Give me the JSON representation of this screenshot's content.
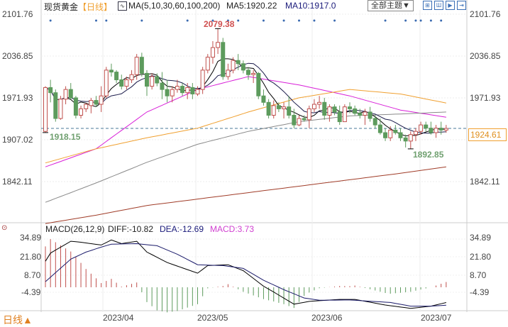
{
  "header": {
    "instrument": "现货黄金",
    "period_tag": "【日线】",
    "ma_label": "MA(5,10,30,60,100,200)",
    "ma5": "MA5:1920.22",
    "ma10": "MA10:1917.0",
    "theme_button": "全部主题▼",
    "icons": [
      "grid-icon",
      "bars-icon",
      "chart-up-icon",
      "export-icon"
    ]
  },
  "macd_header": {
    "label": "MACD(26,12,9)",
    "diff": "DIFF:-10.82",
    "dea": "DEA:-12.69",
    "macd": "MACD:3.73"
  },
  "footer": {
    "period": "日线▲"
  },
  "colors": {
    "up": "#c0504d",
    "down": "#5d9b5d",
    "ma5": "#000000",
    "ma10": "#1a1a4a",
    "ma30": "#d81fd8",
    "ma60": "#f0a030",
    "ma100": "#8a8a8a",
    "ma200": "#a03c28",
    "diff": "#000000",
    "dea": "#1a1a6a",
    "high_label": "#d05050",
    "low_label": "#70a070",
    "price_box": "#f0a030"
  },
  "chart_data": [
    {
      "type": "candlestick",
      "title": "",
      "y_ticks": [
        "2101.76",
        "2036.85",
        "1971.93",
        "1907.02",
        "1842.11"
      ],
      "ylim": [
        1842.11,
        2101.76
      ],
      "x_ticks": [
        "2023/04",
        "2023/05",
        "2023/06",
        "2023/07"
      ],
      "current_price": "1924.61",
      "annotations": {
        "high": "2079.38",
        "low_first": "1918.15",
        "low_recent": "1892.85"
      },
      "ohlc": [
        [
          1920,
          1990,
          1918.15,
          1988
        ],
        [
          1988,
          2000,
          1965,
          1980
        ],
        [
          1980,
          1985,
          1935,
          1940
        ],
        [
          1940,
          1975,
          1938,
          1970
        ],
        [
          1970,
          1990,
          1962,
          1985
        ],
        [
          1985,
          1995,
          1970,
          1972
        ],
        [
          1972,
          1975,
          1940,
          1945
        ],
        [
          1945,
          1960,
          1940,
          1955
        ],
        [
          1955,
          1964,
          1950,
          1962
        ],
        [
          1960,
          1972,
          1948,
          1968
        ],
        [
          1968,
          1975,
          1958,
          1962
        ],
        [
          1962,
          1990,
          1950,
          1975
        ],
        [
          1975,
          2020,
          1972,
          2015
        ],
        [
          2015,
          2025,
          2005,
          2012
        ],
        [
          2012,
          2015,
          1995,
          2000
        ],
        [
          2000,
          2008,
          1985,
          1990
        ],
        [
          1990,
          2005,
          1985,
          2000
        ],
        [
          2000,
          2015,
          1995,
          2008
        ],
        [
          2008,
          2040,
          2000,
          2035
        ],
        [
          2035,
          2042,
          2005,
          2010
        ],
        [
          2010,
          2015,
          1975,
          1990
        ],
        [
          1990,
          2010,
          1985,
          2005
        ],
        [
          2005,
          2010,
          1990,
          1995
        ],
        [
          1995,
          2012,
          1970,
          1985
        ],
        [
          1985,
          2000,
          1965,
          1975
        ],
        [
          1975,
          1990,
          1965,
          1985
        ],
        [
          1985,
          2000,
          1980,
          1990
        ],
        [
          1990,
          1995,
          1975,
          1980
        ],
        [
          1980,
          1995,
          1970,
          1988
        ],
        [
          1988,
          1995,
          1970,
          1978
        ],
        [
          1978,
          1990,
          1975,
          1985
        ],
        [
          1985,
          2020,
          1978,
          2015
        ],
        [
          2015,
          2040,
          2010,
          2035
        ],
        [
          2035,
          2060,
          2025,
          2050
        ],
        [
          2050,
          2079.38,
          2040,
          2058
        ],
        [
          2058,
          2065,
          2000,
          2005
        ],
        [
          2005,
          2025,
          2000,
          2015
        ],
        [
          2015,
          2035,
          2010,
          2030
        ],
        [
          2030,
          2040,
          2015,
          2025
        ],
        [
          2025,
          2030,
          2010,
          2015
        ],
        [
          2015,
          2020,
          2000,
          2008
        ],
        [
          2008,
          2015,
          1995,
          2010
        ],
        [
          2010,
          2012,
          1970,
          1975
        ],
        [
          1975,
          1985,
          1960,
          1965
        ],
        [
          1965,
          1970,
          1940,
          1945
        ],
        [
          1945,
          1968,
          1940,
          1960
        ],
        [
          1960,
          1965,
          1950,
          1955
        ],
        [
          1955,
          1965,
          1940,
          1958
        ],
        [
          1958,
          1975,
          1940,
          1945
        ],
        [
          1945,
          1955,
          1925,
          1930
        ],
        [
          1930,
          1945,
          1928,
          1940
        ],
        [
          1940,
          1945,
          1935,
          1938
        ],
        [
          1938,
          1960,
          1925,
          1955
        ],
        [
          1955,
          1970,
          1950,
          1962
        ],
        [
          1962,
          1975,
          1955,
          1965
        ],
        [
          1965,
          1972,
          1938,
          1945
        ],
        [
          1945,
          1962,
          1935,
          1958
        ],
        [
          1958,
          1962,
          1945,
          1950
        ],
        [
          1950,
          1960,
          1930,
          1935
        ],
        [
          1935,
          1962,
          1935,
          1958
        ],
        [
          1958,
          1965,
          1948,
          1955
        ],
        [
          1955,
          1960,
          1945,
          1948
        ],
        [
          1948,
          1955,
          1940,
          1945
        ],
        [
          1945,
          1955,
          1930,
          1950
        ],
        [
          1950,
          1958,
          1935,
          1940
        ],
        [
          1940,
          1945,
          1925,
          1930
        ],
        [
          1930,
          1940,
          1915,
          1918
        ],
        [
          1918,
          1925,
          1905,
          1910
        ],
        [
          1910,
          1928,
          1905,
          1922
        ],
        [
          1922,
          1930,
          1915,
          1918
        ],
        [
          1918,
          1925,
          1905,
          1910
        ],
        [
          1910,
          1915,
          1895,
          1905
        ],
        [
          1905,
          1920,
          1892.85,
          1915
        ],
        [
          1915,
          1925,
          1905,
          1920
        ],
        [
          1920,
          1935,
          1915,
          1930
        ],
        [
          1930,
          1935,
          1920,
          1925
        ],
        [
          1925,
          1935,
          1915,
          1918
        ],
        [
          1918,
          1930,
          1910,
          1925
        ],
        [
          1925,
          1935,
          1915,
          1922
        ],
        [
          1922,
          1930,
          1918,
          1924.61
        ]
      ],
      "ma_sample_index": [
        0,
        10,
        20,
        30,
        40,
        50,
        60,
        70,
        79
      ],
      "ma_series": [
        {
          "name": "MA30",
          "values": [
            1865,
            1893,
            1950,
            1985,
            2005,
            1992,
            1975,
            1953,
            1942
          ]
        },
        {
          "name": "MA60",
          "values": [
            1871,
            1893,
            1910,
            1925,
            1950,
            1972,
            1985,
            1978,
            1964
          ]
        },
        {
          "name": "MA100",
          "values": [
            1810,
            1840,
            1872,
            1900,
            1920,
            1935,
            1944,
            1947,
            1950
          ]
        },
        {
          "name": "MA200",
          "values": [
            1777,
            1790,
            1805,
            1815,
            1825,
            1835,
            1845,
            1855,
            1865
          ]
        }
      ]
    },
    {
      "type": "macd",
      "y_ticks": [
        "34.89",
        "21.80",
        "8.70",
        "-4.39"
      ],
      "ylim": [
        -15,
        35
      ],
      "diff": {
        "index": [
          0,
          1,
          5,
          7,
          11,
          13,
          15,
          18,
          20,
          24,
          30,
          32,
          36,
          39,
          43,
          45,
          49,
          52,
          58,
          61,
          67,
          72,
          76,
          79
        ],
        "values": [
          18.5,
          24.3,
          32.7,
          32,
          30,
          33.6,
          31,
          32.7,
          25,
          17.6,
          10,
          15.4,
          16,
          11.8,
          0.8,
          -3.4,
          -12,
          -10,
          -8.6,
          -8.6,
          -12.6,
          -15,
          -13.4,
          -10.82
        ]
      },
      "dea": {
        "index": [
          0,
          5,
          8,
          11,
          13,
          18,
          22,
          26,
          30,
          35,
          39,
          43,
          47,
          51,
          54,
          60,
          68,
          72,
          76,
          79
        ],
        "values": [
          4,
          20,
          25,
          28.5,
          30.6,
          31,
          29.5,
          23.5,
          16,
          15.4,
          13.4,
          5,
          -1.7,
          -7.6,
          -9.2,
          -9,
          -10.8,
          -13.4,
          -13.4,
          -12.69
        ]
      }
    }
  ],
  "markers": {
    "dot_candles": [
      1,
      10,
      12,
      19,
      28,
      33,
      36,
      38,
      43,
      47,
      50,
      53,
      57,
      67,
      71,
      73,
      74,
      76,
      78
    ]
  }
}
